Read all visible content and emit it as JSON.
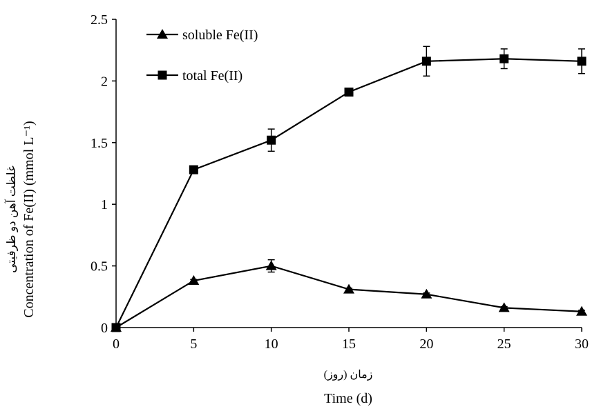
{
  "chart_data": {
    "type": "line",
    "xlabel_fa": "زمان (روز)",
    "xlabel": "Time (d)",
    "ylabel_fa": "غلظت آهن دو ظرفیتی",
    "ylabel": "Concentration of Fe(II) (mmol L⁻¹)",
    "x_ticks": [
      "0",
      "5",
      "10",
      "15",
      "20",
      "25",
      "30"
    ],
    "y_ticks": [
      "0",
      "0.5",
      "1",
      "1.5",
      "2",
      "2.5"
    ],
    "xlim": [
      0,
      30
    ],
    "ylim": [
      0,
      2.5
    ],
    "grid": false,
    "legend_position": "top-left",
    "x": [
      0,
      5,
      10,
      15,
      20,
      25,
      30
    ],
    "series": [
      {
        "name": "soluble Fe(II)",
        "marker": "triangle",
        "values": [
          0.0,
          0.38,
          0.5,
          0.31,
          0.27,
          0.16,
          0.13
        ],
        "error": [
          0,
          0.01,
          0.05,
          0.01,
          0.01,
          0.01,
          0.01
        ]
      },
      {
        "name": "total Fe(II)",
        "marker": "square",
        "values": [
          0.0,
          1.28,
          1.52,
          1.91,
          2.16,
          2.18,
          2.16
        ],
        "error": [
          0,
          0.01,
          0.09,
          0.01,
          0.12,
          0.08,
          0.1
        ]
      }
    ]
  }
}
